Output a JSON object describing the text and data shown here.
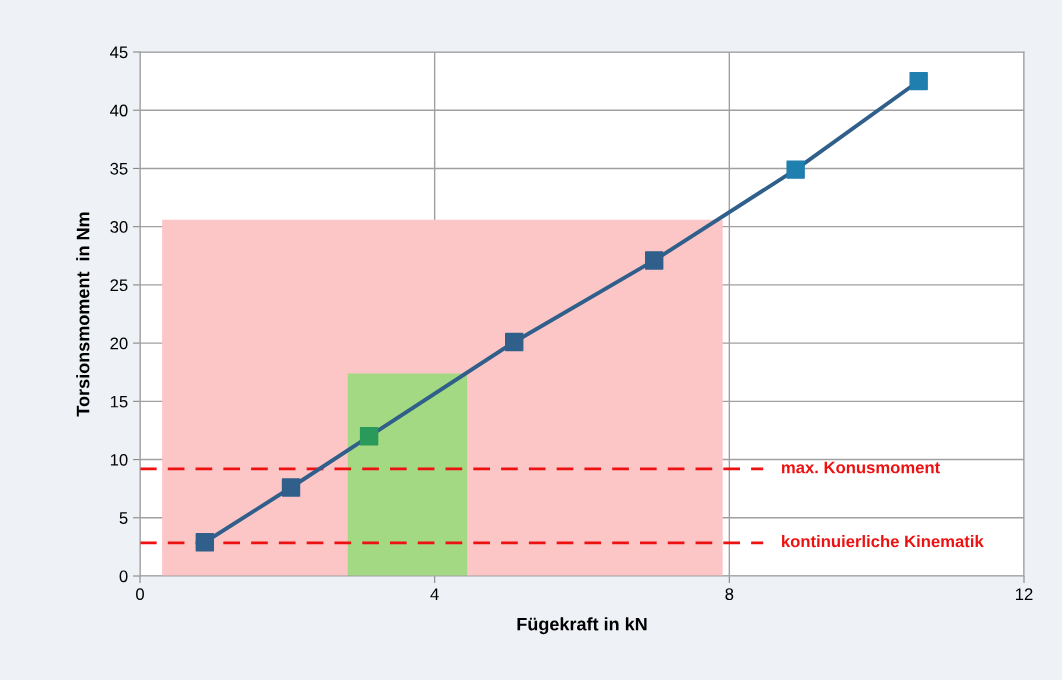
{
  "chart_data": {
    "type": "line",
    "xlabel": "Fügekraft in kN",
    "ylabel": "Torsionsmoment  in Nm",
    "x": [
      0.88,
      2.05,
      3.11,
      5.08,
      6.98,
      8.9,
      10.57
    ],
    "series": [
      {
        "type": "area",
        "x": [
          0.3,
          7.91
        ],
        "color": "#fcc6c6",
        "values": [
          30.6,
          30.6
        ]
      },
      {
        "type": "area",
        "x": [
          2.82,
          4.44
        ],
        "color": "#a2d982",
        "values": [
          17.4,
          17.4
        ]
      },
      {
        "marker": "square",
        "color": "#2f5f8a",
        "colors": [
          "#2f5f8a",
          "#2f5f8a",
          "#2a9a5a",
          "#2f5f8a",
          "#2f5f8a",
          "#1f7fae",
          "#1f7fae"
        ],
        "values": [
          2.9,
          7.6,
          12.0,
          20.1,
          27.1,
          34.9,
          42.5
        ]
      }
    ],
    "xlim": [
      0,
      12
    ],
    "xticks": [
      0,
      4,
      8,
      12
    ],
    "ylim": [
      0,
      45
    ],
    "yticks": [
      0,
      5,
      10,
      15,
      20,
      25,
      30,
      35,
      40,
      45
    ],
    "grid": true,
    "line_style": "solid",
    "ref_lines": [
      {
        "axis": "y",
        "value": 9.2,
        "label": "max. Konusmoment",
        "color": "#ee1111",
        "line_style": "dashed"
      },
      {
        "axis": "y",
        "value": 2.85,
        "label": "kontinuierliche Kinematik",
        "color": "#ee1111",
        "line_style": "dashed"
      }
    ]
  }
}
